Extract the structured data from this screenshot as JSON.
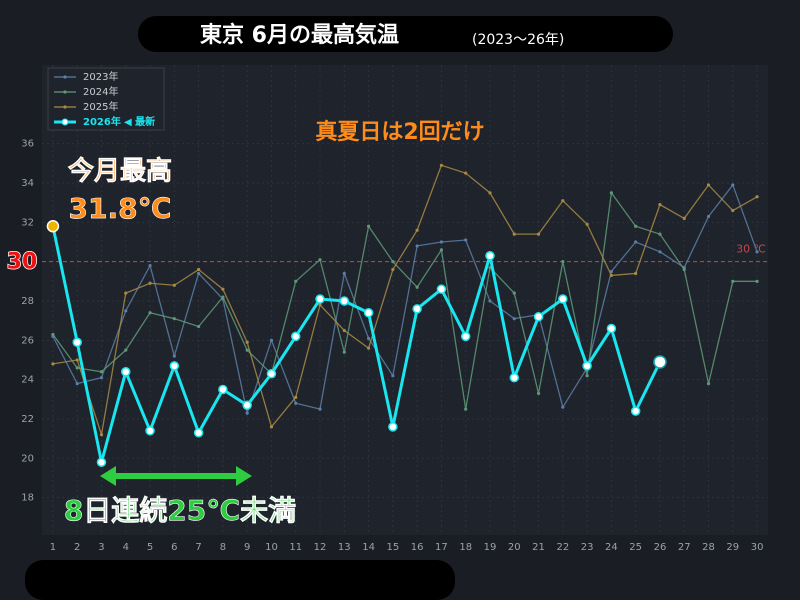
{
  "chart_data": {
    "type": "line",
    "title": "東京 6月の最高気温",
    "subtitle": "(2023〜26年)",
    "x": [
      1,
      2,
      3,
      4,
      5,
      6,
      7,
      8,
      9,
      10,
      11,
      12,
      13,
      14,
      15,
      16,
      17,
      18,
      19,
      20,
      21,
      22,
      23,
      24,
      25,
      26,
      27,
      28,
      29,
      30
    ],
    "xlim": [
      0.55,
      30.45
    ],
    "xticks": [
      1,
      2,
      3,
      4,
      5,
      6,
      7,
      8,
      9,
      10,
      11,
      12,
      13,
      14,
      15,
      16,
      17,
      18,
      19,
      20,
      21,
      22,
      23,
      24,
      25,
      26,
      27,
      28,
      29,
      30
    ],
    "ylim": [
      16.1,
      40
    ],
    "yticks": [
      18,
      20,
      22,
      24,
      26,
      28,
      32,
      34,
      36
    ],
    "grid": true,
    "legend": "upper left",
    "legend_note": "◀ 最新",
    "series": [
      {
        "name": "2023年",
        "color": "#5b7fa6",
        "values": [
          26.2,
          23.8,
          24.1,
          27.5,
          29.8,
          25.2,
          29.4,
          28.1,
          22.3,
          26.0,
          22.8,
          22.5,
          29.4,
          26.1,
          24.2,
          30.8,
          31.0,
          31.1,
          28.0,
          27.1,
          27.3,
          22.6,
          24.6,
          29.5,
          31.0,
          30.5,
          29.7,
          32.3,
          33.9,
          30.5
        ]
      },
      {
        "name": "2024年",
        "color": "#5e9a78",
        "values": [
          26.3,
          24.6,
          24.4,
          25.5,
          27.4,
          27.1,
          26.7,
          28.2,
          25.5,
          24.3,
          29.0,
          30.1,
          25.4,
          31.8,
          30.0,
          28.7,
          30.6,
          22.5,
          29.7,
          28.4,
          23.3,
          30.0,
          24.2,
          33.5,
          31.8,
          31.4,
          29.6,
          23.8,
          29.0,
          29.0
        ]
      },
      {
        "name": "2025年",
        "color": "#a88a45",
        "values": [
          24.8,
          25.0,
          21.2,
          28.4,
          28.9,
          28.8,
          29.6,
          28.6,
          25.9,
          21.6,
          23.1,
          27.8,
          26.5,
          25.6,
          29.6,
          31.6,
          34.9,
          34.5,
          33.5,
          31.4,
          31.4,
          33.1,
          31.9,
          29.3,
          29.4,
          32.9,
          32.2,
          33.9,
          32.6,
          33.3
        ]
      },
      {
        "name": "2026年",
        "color": "#19e6f0",
        "first_marker_color": "#f0b400",
        "values": [
          31.8,
          25.9,
          19.8,
          24.4,
          21.4,
          24.7,
          21.3,
          23.5,
          22.7,
          24.3,
          26.2,
          28.1,
          28.0,
          27.4,
          21.6,
          27.6,
          28.6,
          26.2,
          30.3,
          24.1,
          27.2,
          28.1,
          24.7,
          26.6,
          22.4,
          24.9,
          null,
          null,
          null,
          null
        ]
      }
    ],
    "ref_line": {
      "value": 30,
      "label": "30 ℃",
      "color": "#c04848"
    },
    "annotations": [
      "真夏日は2回だけ",
      "今月最高",
      "31.8℃",
      "8日連続25℃未満"
    ]
  }
}
